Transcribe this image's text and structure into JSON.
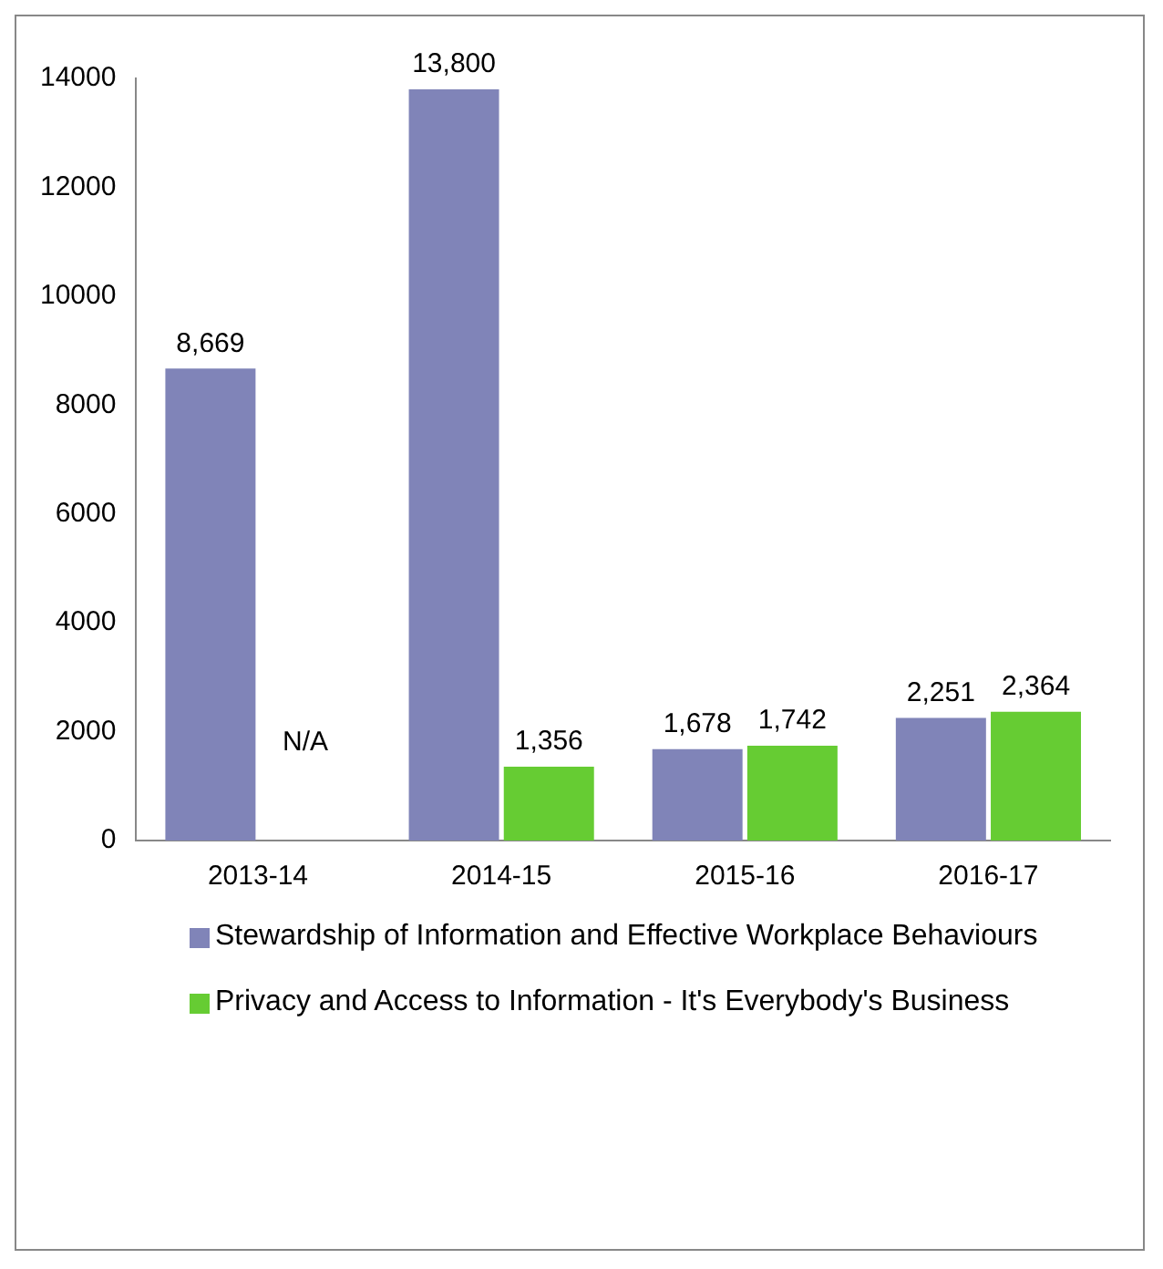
{
  "chart_data": {
    "type": "bar",
    "categories": [
      "2013-14",
      "2014-15",
      "2015-16",
      "2016-17"
    ],
    "series": [
      {
        "name": "Stewardship of Information and Effective Workplace Behaviours",
        "color": "#8084b8",
        "values": [
          8669,
          13800,
          1678,
          2251
        ],
        "value_labels": [
          "8,669",
          "13,800",
          "1,678",
          "2,251"
        ]
      },
      {
        "name": "Privacy and Access to Information - It's Everybody's Business",
        "color": "#66cc33",
        "values": [
          null,
          1356,
          1742,
          2364
        ],
        "value_labels": [
          "N/A",
          "1,356",
          "1,742",
          "2,364"
        ]
      }
    ],
    "ylim": [
      0,
      14000
    ],
    "yticks": [
      0,
      2000,
      4000,
      6000,
      8000,
      10000,
      12000,
      14000
    ],
    "grid": false,
    "legend": "bottom"
  }
}
